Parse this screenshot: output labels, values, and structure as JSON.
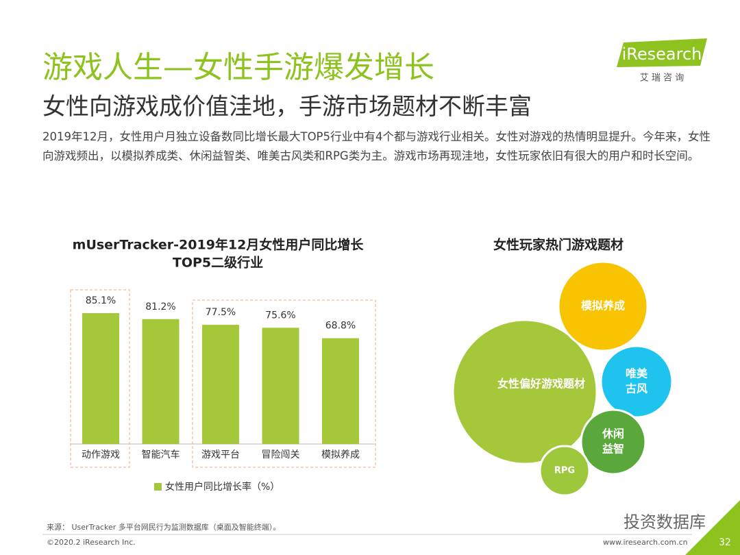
{
  "header": {
    "title": "游戏人生—女性手游爆发增长",
    "subtitle": "女性向游戏成价值洼地，手游市场题材不断丰富",
    "logo": "iResearch",
    "logo_sub": "艾 瑞 咨 询"
  },
  "body": {
    "text": "2019年12月，女性用户月独立设备数同比增长最大TOP5行业中有4个都与游戏行业相关。女性对游戏的热情明显提升。今年来，女性向游戏频出，以模拟养成类、休闲益智类、唯美古风类和RPG类为主。游戏市场再现洼地，女性玩家依旧有很大的用户和时长空间。"
  },
  "chart_data": {
    "type": "bar",
    "title": [
      "mUserTracker-2019年12月女性用户同比增长",
      "TOP5二级行业"
    ],
    "categories": [
      "动作游戏",
      "智能汽车",
      "游戏平台",
      "冒险闯关",
      "模拟养成"
    ],
    "series": [
      {
        "name": "女性用户同比增长率（%）",
        "color": "#a5c83a",
        "values": [
          85.1,
          81.2,
          77.5,
          75.6,
          68.8
        ],
        "value_labels": [
          "85.1%",
          "81.2%",
          "77.5%",
          "75.6%",
          "68.8%"
        ]
      }
    ]
  },
  "bubbles": {
    "title": "女性玩家热门游戏题材",
    "center": "女性偏好游戏题材",
    "items": [
      {
        "lines": [
          "模拟养成"
        ]
      },
      {
        "lines": [
          "唯美",
          "古风"
        ]
      },
      {
        "lines": [
          "休闲",
          "益智"
        ]
      },
      {
        "lines": [
          "RPG"
        ]
      }
    ]
  },
  "footer": {
    "source": "来源： UserTracker 多平台网民行为监测数据库（桌面及智能终端）。",
    "copyright": "©2020.2 iResearch Inc.",
    "url": "www.iresearch.com.cn",
    "page": "32",
    "watermark": "投资数据库"
  }
}
